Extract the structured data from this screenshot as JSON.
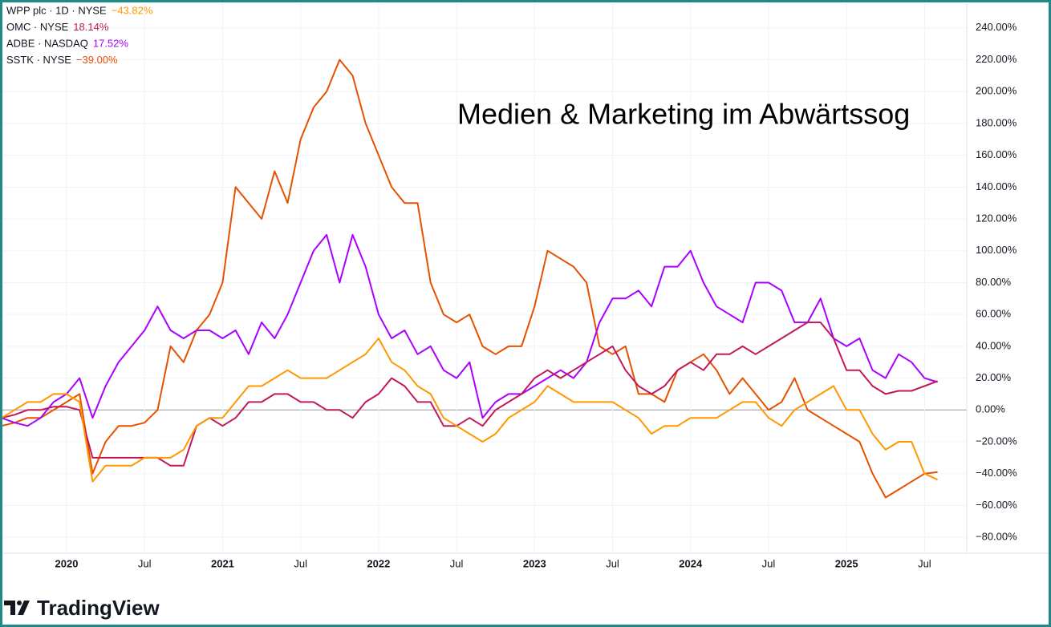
{
  "chart_data": {
    "type": "line",
    "title": "Medien & Marketing im Abwärtssog",
    "watermark": "TradingView",
    "x": [
      "2019-08",
      "2019-09",
      "2019-10",
      "2019-11",
      "2019-12",
      "2020-01",
      "2020-02",
      "2020-03",
      "2020-04",
      "2020-05",
      "2020-06",
      "2020-07",
      "2020-08",
      "2020-09",
      "2020-10",
      "2020-11",
      "2020-12",
      "2021-01",
      "2021-02",
      "2021-03",
      "2021-04",
      "2021-05",
      "2021-06",
      "2021-07",
      "2021-08",
      "2021-09",
      "2021-10",
      "2021-11",
      "2021-12",
      "2022-01",
      "2022-02",
      "2022-03",
      "2022-04",
      "2022-05",
      "2022-06",
      "2022-07",
      "2022-08",
      "2022-09",
      "2022-10",
      "2022-11",
      "2022-12",
      "2023-01",
      "2023-02",
      "2023-03",
      "2023-04",
      "2023-05",
      "2023-06",
      "2023-07",
      "2023-08",
      "2023-09",
      "2023-10",
      "2023-11",
      "2023-12",
      "2024-01",
      "2024-02",
      "2024-03",
      "2024-04",
      "2024-05",
      "2024-06",
      "2024-07",
      "2024-08",
      "2024-09",
      "2024-10",
      "2024-11",
      "2024-12",
      "2025-01",
      "2025-02",
      "2025-03",
      "2025-04",
      "2025-05",
      "2025-06",
      "2025-07",
      "2025-08"
    ],
    "series": [
      {
        "name": "WPP plc · 1D · NYSE",
        "color": "#ff9800",
        "values": [
          -5,
          0,
          5,
          5,
          10,
          10,
          5,
          -45,
          -35,
          -35,
          -35,
          -30,
          -30,
          -30,
          -25,
          -10,
          -5,
          -5,
          5,
          15,
          15,
          20,
          25,
          20,
          20,
          20,
          25,
          30,
          35,
          45,
          30,
          25,
          15,
          10,
          -5,
          -10,
          -15,
          -20,
          -15,
          -5,
          0,
          5,
          15,
          10,
          5,
          5,
          5,
          5,
          0,
          -5,
          -15,
          -10,
          -10,
          -5,
          -5,
          -5,
          0,
          5,
          5,
          -5,
          -10,
          0,
          5,
          10,
          15,
          0,
          0,
          -15,
          -25,
          -20,
          -20,
          -40,
          -43.82
        ],
        "value_labels": [
          null,
          null,
          null,
          null,
          null,
          null,
          null,
          null,
          null,
          null,
          null,
          null,
          null,
          null,
          null,
          null,
          null,
          null,
          null,
          null,
          null,
          null,
          null,
          null,
          null,
          null,
          null,
          null,
          null,
          null,
          null,
          null,
          null,
          null,
          null,
          null,
          null,
          null,
          null,
          null,
          null,
          null,
          null,
          null,
          null,
          null,
          null,
          null,
          null,
          null,
          null,
          null,
          null,
          null,
          null,
          null,
          null,
          null,
          null,
          null,
          null,
          null,
          null,
          null,
          null,
          null,
          null,
          null,
          null,
          null,
          null,
          null,
          "−43.82%"
        ]
      },
      {
        "name": "OMC · NYSE",
        "color": "#c2185b",
        "values": [
          -5,
          -3,
          0,
          0,
          2,
          2,
          0,
          -30,
          -30,
          -30,
          -30,
          -30,
          -30,
          -35,
          -35,
          -10,
          -5,
          -10,
          -5,
          5,
          5,
          10,
          10,
          5,
          5,
          0,
          0,
          -5,
          5,
          10,
          20,
          15,
          5,
          5,
          -10,
          -10,
          -5,
          -10,
          0,
          5,
          10,
          20,
          25,
          20,
          25,
          30,
          35,
          40,
          25,
          15,
          10,
          15,
          25,
          30,
          25,
          35,
          35,
          40,
          35,
          40,
          45,
          50,
          55,
          55,
          45,
          25,
          25,
          15,
          10,
          12,
          12,
          15,
          18.14
        ],
        "value_labels": [
          null,
          null,
          null,
          null,
          null,
          null,
          null,
          null,
          null,
          null,
          null,
          null,
          null,
          null,
          null,
          null,
          null,
          null,
          null,
          null,
          null,
          null,
          null,
          null,
          null,
          null,
          null,
          null,
          null,
          null,
          null,
          null,
          null,
          null,
          null,
          null,
          null,
          null,
          null,
          null,
          null,
          null,
          null,
          null,
          null,
          null,
          null,
          null,
          null,
          null,
          null,
          null,
          null,
          null,
          null,
          null,
          null,
          null,
          null,
          null,
          null,
          null,
          null,
          null,
          null,
          null,
          null,
          null,
          null,
          null,
          null,
          null,
          "18.14%"
        ]
      },
      {
        "name": "ADBE · NASDAQ",
        "color": "#aa00ff",
        "values": [
          -5,
          -8,
          -10,
          -5,
          5,
          10,
          20,
          -5,
          15,
          30,
          40,
          50,
          65,
          50,
          45,
          50,
          50,
          45,
          50,
          35,
          55,
          45,
          60,
          80,
          100,
          110,
          80,
          110,
          90,
          60,
          45,
          50,
          35,
          40,
          25,
          20,
          30,
          -5,
          5,
          10,
          10,
          15,
          20,
          25,
          20,
          30,
          55,
          70,
          70,
          75,
          65,
          90,
          90,
          100,
          80,
          65,
          60,
          55,
          80,
          80,
          75,
          55,
          55,
          70,
          45,
          40,
          45,
          25,
          20,
          35,
          30,
          20,
          17.52
        ],
        "value_labels": [
          null,
          null,
          null,
          null,
          null,
          null,
          null,
          null,
          null,
          null,
          null,
          null,
          null,
          null,
          null,
          null,
          null,
          null,
          null,
          null,
          null,
          null,
          null,
          null,
          null,
          null,
          null,
          null,
          null,
          null,
          null,
          null,
          null,
          null,
          null,
          null,
          null,
          null,
          null,
          null,
          null,
          null,
          null,
          null,
          null,
          null,
          null,
          null,
          null,
          null,
          null,
          null,
          null,
          null,
          null,
          null,
          null,
          null,
          null,
          null,
          null,
          null,
          null,
          null,
          null,
          null,
          null,
          null,
          null,
          null,
          null,
          null,
          "17.52%"
        ]
      },
      {
        "name": "SSTK · NYSE",
        "color": "#e65100",
        "values": [
          -10,
          -8,
          -5,
          -5,
          0,
          5,
          10,
          -40,
          -20,
          -10,
          -10,
          -8,
          0,
          40,
          30,
          50,
          60,
          80,
          140,
          130,
          120,
          150,
          130,
          170,
          190,
          200,
          220,
          210,
          180,
          160,
          140,
          130,
          130,
          80,
          60,
          55,
          60,
          40,
          35,
          40,
          40,
          65,
          100,
          95,
          90,
          80,
          40,
          35,
          40,
          10,
          10,
          5,
          25,
          30,
          35,
          25,
          10,
          20,
          10,
          0,
          5,
          20,
          0,
          -5,
          -10,
          -15,
          -20,
          -40,
          -55,
          -50,
          -45,
          -40,
          -39
        ],
        "value_labels": [
          null,
          null,
          null,
          null,
          null,
          null,
          null,
          null,
          null,
          null,
          null,
          null,
          null,
          null,
          null,
          null,
          null,
          null,
          null,
          null,
          null,
          null,
          null,
          null,
          null,
          null,
          null,
          null,
          null,
          null,
          null,
          null,
          null,
          null,
          null,
          null,
          null,
          null,
          null,
          null,
          null,
          null,
          null,
          null,
          null,
          null,
          null,
          null,
          null,
          null,
          null,
          null,
          null,
          null,
          null,
          null,
          null,
          null,
          null,
          null,
          null,
          null,
          null,
          null,
          null,
          null,
          null,
          null,
          null,
          null,
          null,
          null,
          "−39.00%"
        ]
      }
    ],
    "xlim": [
      "2019-08",
      "2025-10"
    ],
    "xticks": [
      {
        "value": "2020-01",
        "label": "2020"
      },
      {
        "value": "2020-07",
        "label": "Jul"
      },
      {
        "value": "2021-01",
        "label": "2021"
      },
      {
        "value": "2021-07",
        "label": "Jul"
      },
      {
        "value": "2022-01",
        "label": "2022"
      },
      {
        "value": "2022-07",
        "label": "Jul"
      },
      {
        "value": "2023-01",
        "label": "2023"
      },
      {
        "value": "2023-07",
        "label": "Jul"
      },
      {
        "value": "2024-01",
        "label": "2024"
      },
      {
        "value": "2024-07",
        "label": "Jul"
      },
      {
        "value": "2025-01",
        "label": "2025"
      },
      {
        "value": "2025-07",
        "label": "Jul"
      }
    ],
    "ylim": [
      -90,
      256
    ],
    "yticks": [
      {
        "value": -80,
        "label": "−80.00%"
      },
      {
        "value": -60,
        "label": "−60.00%"
      },
      {
        "value": -40,
        "label": "−40.00%"
      },
      {
        "value": -20,
        "label": "−20.00%"
      },
      {
        "value": 0,
        "label": "0.00%"
      },
      {
        "value": 20,
        "label": "20.00%"
      },
      {
        "value": 40,
        "label": "40.00%"
      },
      {
        "value": 60,
        "label": "60.00%"
      },
      {
        "value": 80,
        "label": "80.00%"
      },
      {
        "value": 100,
        "label": "100.00%"
      },
      {
        "value": 120,
        "label": "120.00%"
      },
      {
        "value": 140,
        "label": "140.00%"
      },
      {
        "value": 160,
        "label": "160.00%"
      },
      {
        "value": 180,
        "label": "180.00%"
      },
      {
        "value": 200,
        "label": "200.00%"
      },
      {
        "value": 220,
        "label": "220.00%"
      },
      {
        "value": 240,
        "label": "240.00%"
      }
    ],
    "grid": true
  }
}
